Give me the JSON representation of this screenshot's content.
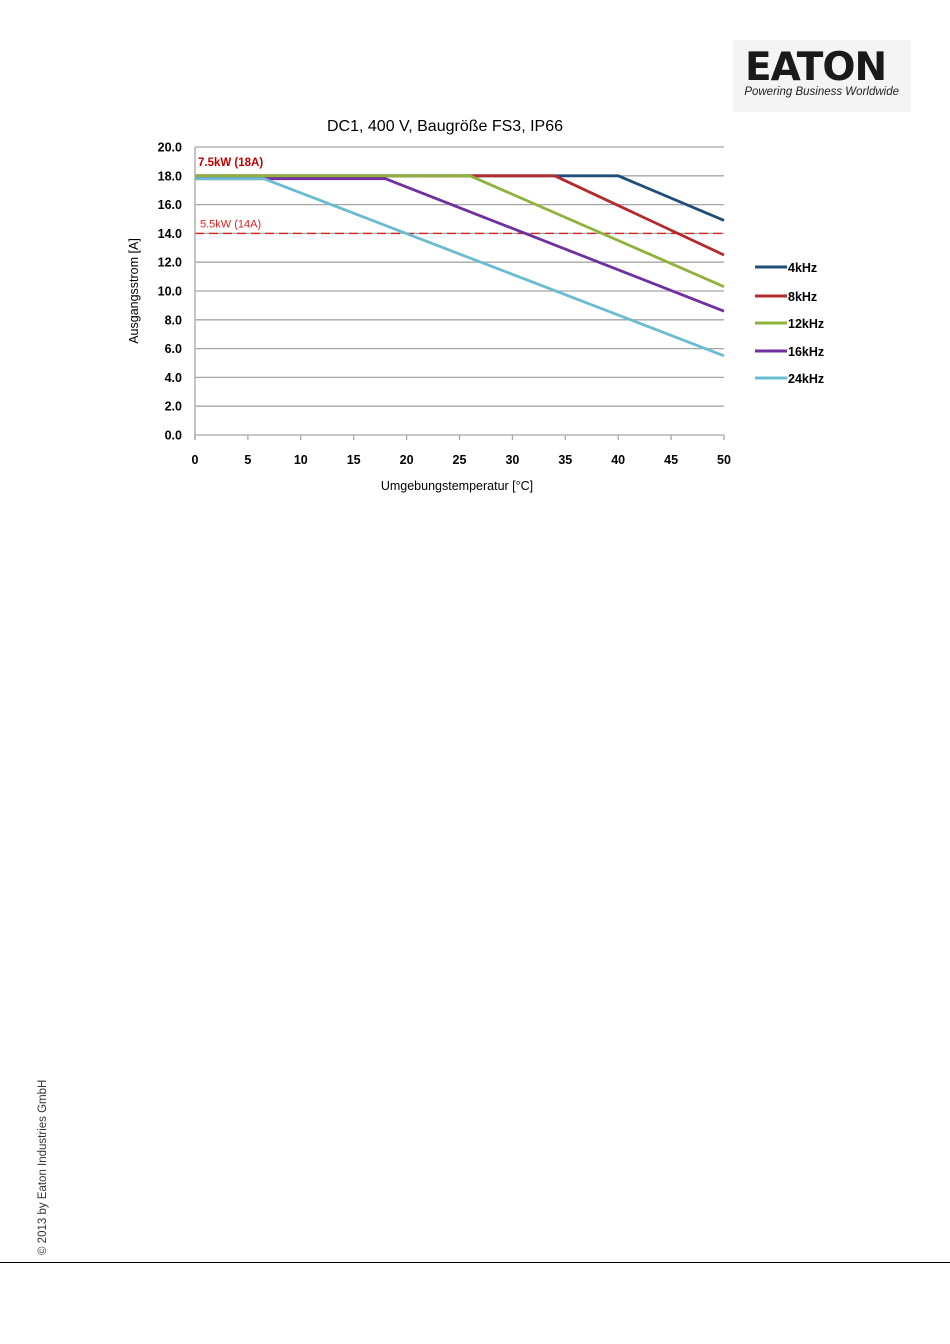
{
  "logo": {
    "wordmark": "EATON",
    "tagline": "Powering Business Worldwide"
  },
  "copyright": "© 2013 by Eaton Industries GmbH",
  "colors": {
    "4kHz": "#1f4e79",
    "8kHz": "#b22a2a",
    "12kHz": "#8fb23c",
    "16kHz": "#7030a0",
    "24kHz": "#6bbcd1",
    "threshold": "#e02020",
    "grid": "#a6a6a6"
  },
  "chart_data": {
    "type": "line",
    "title": "DC1, 400 V, Baugröße FS3, IP66",
    "xlabel": "Umgebungstemperatur [°C]",
    "ylabel": "Ausgangsstrom [A]",
    "xlim": [
      0,
      50
    ],
    "ylim": [
      0,
      20
    ],
    "xticks": [
      0,
      5,
      10,
      15,
      20,
      25,
      30,
      35,
      40,
      45,
      50
    ],
    "yticks": [
      "0.0",
      "2.0",
      "4.0",
      "6.0",
      "8.0",
      "10.0",
      "12.0",
      "14.0",
      "16.0",
      "18.0",
      "20.0"
    ],
    "grid": true,
    "legend_position": "right",
    "series": [
      {
        "name": "4kHz",
        "x": [
          0,
          40,
          50
        ],
        "y": [
          18.0,
          18.0,
          14.9
        ]
      },
      {
        "name": "8kHz",
        "x": [
          0,
          34,
          50
        ],
        "y": [
          18.0,
          18.0,
          12.5
        ]
      },
      {
        "name": "12kHz",
        "x": [
          0,
          26,
          50
        ],
        "y": [
          18.0,
          18.0,
          10.3
        ]
      },
      {
        "name": "16kHz",
        "x": [
          0,
          18,
          50
        ],
        "y": [
          17.8,
          17.8,
          8.6
        ]
      },
      {
        "name": "24kHz",
        "x": [
          0,
          6.5,
          50
        ],
        "y": [
          17.8,
          17.8,
          5.5
        ]
      }
    ],
    "annotations": [
      {
        "text": "7.5kW (18A)",
        "y": 18.0,
        "style": "bold"
      },
      {
        "text": "5.5kW (14A)",
        "y": 14.0,
        "style": "dashed-line"
      }
    ]
  }
}
